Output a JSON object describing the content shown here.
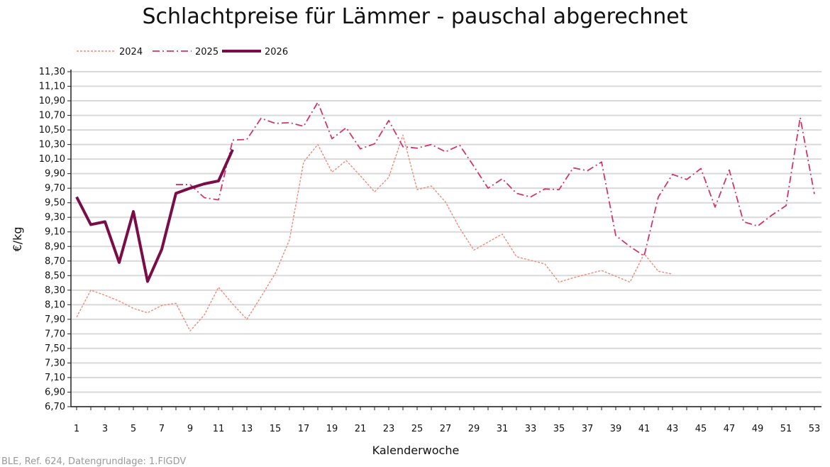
{
  "chart_data": {
    "type": "line",
    "title": "Schlachtpreise für Lämmer - pauschal abgerechnet",
    "xlabel": "Kalenderwoche",
    "ylabel": "€/kg",
    "ylim": [
      6.7,
      11.3
    ],
    "y_step": 0.2,
    "xlim": [
      1,
      53
    ],
    "x_tick_labels": [
      "1",
      "3",
      "5",
      "7",
      "9",
      "11",
      "13",
      "15",
      "17",
      "19",
      "21",
      "23",
      "25",
      "27",
      "29",
      "31",
      "33",
      "35",
      "37",
      "39",
      "41",
      "43",
      "45",
      "47",
      "49",
      "51",
      "53"
    ],
    "grid": "horizontal",
    "legend_position": "top-left",
    "series": [
      {
        "name": "2024",
        "color": "#f08a78",
        "style": "dotted",
        "start_week": 1,
        "values": [
          7.93,
          8.3,
          8.23,
          8.15,
          8.05,
          7.99,
          8.09,
          8.12,
          7.74,
          7.96,
          8.34,
          8.11,
          7.9,
          8.21,
          8.53,
          8.99,
          10.06,
          10.3,
          9.92,
          10.08,
          9.87,
          9.65,
          9.85,
          10.43,
          9.68,
          9.73,
          9.51,
          9.15,
          8.85,
          8.96,
          9.07,
          8.76,
          8.71,
          8.66,
          8.41,
          8.47,
          8.52,
          8.57,
          8.49,
          8.41,
          8.8,
          8.56,
          8.52
        ]
      },
      {
        "name": "2025",
        "color": "#d2356e",
        "style": "dash-dot",
        "start_week": 8,
        "values": [
          9.75,
          9.75,
          9.57,
          9.54,
          10.36,
          10.37,
          10.66,
          10.59,
          10.6,
          10.55,
          10.88,
          10.38,
          10.53,
          10.24,
          10.31,
          10.63,
          10.27,
          10.25,
          10.3,
          10.2,
          10.29,
          10.0,
          9.7,
          9.83,
          9.63,
          9.58,
          9.69,
          9.68,
          9.98,
          9.94,
          10.06,
          9.05,
          8.9,
          8.77,
          9.58,
          9.89,
          9.82,
          9.97,
          9.44,
          9.95,
          9.24,
          9.18,
          9.33,
          9.46,
          10.67,
          9.62
        ]
      },
      {
        "name": "2026",
        "color": "#7a0c47",
        "style": "solid",
        "start_week": 1,
        "values": [
          9.58,
          9.2,
          9.24,
          8.68,
          9.38,
          8.42,
          8.86,
          9.63,
          9.7,
          9.76,
          9.8,
          10.23
        ]
      }
    ]
  },
  "source": "BLE, Ref. 624, Datengrundlage: 1.FlGDV"
}
